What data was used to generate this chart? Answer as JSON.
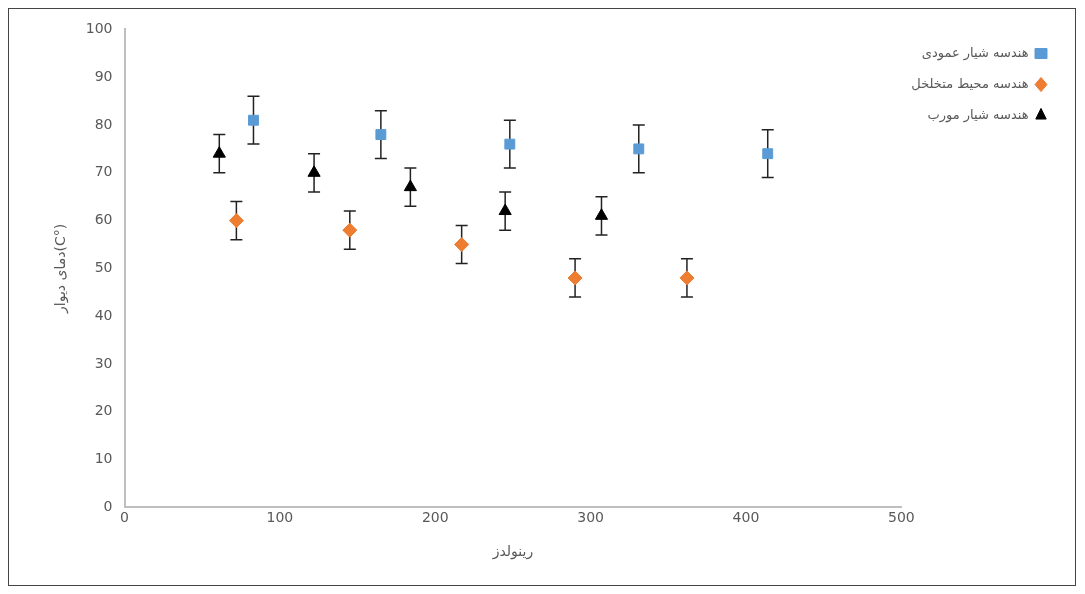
{
  "chart_data": {
    "type": "scatter",
    "xlabel": "رینولدز",
    "ylabel": "دمای دیوار(C°)",
    "xlim": [
      0,
      500
    ],
    "xticks": [
      0,
      100,
      200,
      300,
      400,
      500
    ],
    "ylim": [
      0,
      100
    ],
    "yticks": [
      0,
      10,
      20,
      30,
      40,
      50,
      60,
      70,
      80,
      90,
      100
    ],
    "grid": false,
    "legend": "top right",
    "series": [
      {
        "name": "هندسه شیار عمودی",
        "color": "#5b9bd5",
        "marker": "square",
        "x": [
          83,
          165,
          248,
          331,
          414
        ],
        "values": [
          81,
          78,
          76,
          75,
          74
        ],
        "errors": [
          5,
          5,
          5,
          5,
          5
        ]
      },
      {
        "name": "هندسه محیط متخلخل",
        "color": "#ed7d31",
        "marker": "diamond",
        "x": [
          72,
          145,
          217,
          290,
          362
        ],
        "values": [
          60,
          58,
          55,
          48,
          48
        ],
        "errors": [
          4,
          4,
          4,
          4,
          4
        ]
      },
      {
        "name": "هندسه شیار مورب",
        "color": "#000000",
        "marker": "triangle",
        "x": [
          61,
          122,
          184,
          245,
          307
        ],
        "values": [
          74,
          70,
          67,
          62,
          61
        ],
        "errors": [
          4,
          4,
          4,
          4,
          4
        ]
      }
    ]
  }
}
